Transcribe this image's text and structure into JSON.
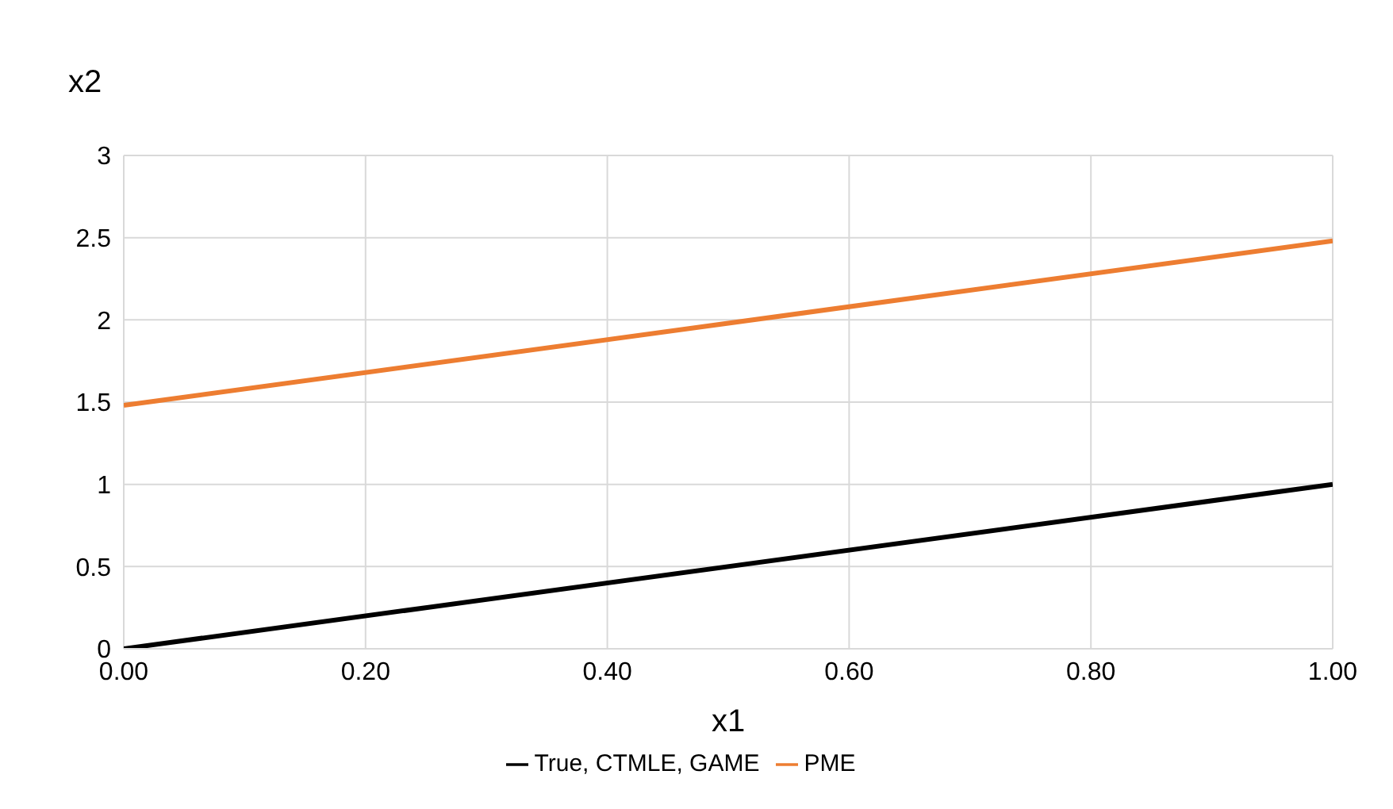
{
  "chart_data": {
    "type": "line",
    "xlabel": "x1",
    "ylabel": "x2",
    "x": [
      0,
      1
    ],
    "series": [
      {
        "name": "True, CTMLE, GAME",
        "color": "#000000",
        "values": [
          0,
          1
        ]
      },
      {
        "name": "PME",
        "color": "#ed7d31",
        "values": [
          1.48,
          2.48
        ]
      }
    ],
    "xlim": [
      0,
      1
    ],
    "xticks": [
      {
        "value": 0,
        "label": "0.00"
      },
      {
        "value": 0.2,
        "label": "0.20"
      },
      {
        "value": 0.4,
        "label": "0.40"
      },
      {
        "value": 0.6,
        "label": "0.60"
      },
      {
        "value": 0.8,
        "label": "0.80"
      },
      {
        "value": 1,
        "label": "1.00"
      }
    ],
    "ylim": [
      0,
      3
    ],
    "yticks": [
      0,
      0.5,
      1,
      1.5,
      2,
      2.5,
      3
    ],
    "grid": true,
    "legend": "bottom",
    "marker": "none",
    "line_style": "solid"
  }
}
